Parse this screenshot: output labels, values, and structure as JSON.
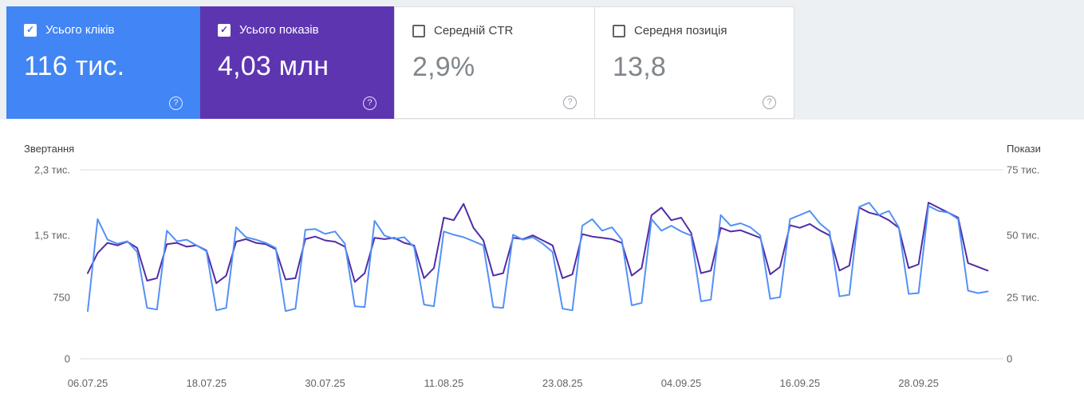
{
  "cards": {
    "clicks": {
      "title": "Усього кліків",
      "value": "116 тис.",
      "checked": true,
      "color": "#4285f4"
    },
    "impressions": {
      "title": "Усього показів",
      "value": "4,03 млн",
      "checked": true,
      "color": "#5e35b1"
    },
    "ctr": {
      "title": "Середній CTR",
      "value": "2,9%",
      "checked": false
    },
    "position": {
      "title": "Середня позиція",
      "value": "13,8",
      "checked": false
    }
  },
  "icons": {
    "check_glyph": "✓",
    "help_glyph": "?"
  },
  "chart": {
    "left_axis_title": "Звертання",
    "right_axis_title": "Покази",
    "left_labels": [
      "2,3 тис.",
      "1,5 тис.",
      "750",
      "0"
    ],
    "right_labels": [
      "75 тис.",
      "50 тис.",
      "25 тис.",
      "0"
    ]
  },
  "chart_data": {
    "type": "line",
    "title": "",
    "x_tick_labels": [
      "06.07.25",
      "18.07.25",
      "30.07.25",
      "11.08.25",
      "23.08.25",
      "04.09.25",
      "16.09.25",
      "28.09.25"
    ],
    "x_tick_days": [
      0,
      12,
      24,
      36,
      48,
      60,
      72,
      84
    ],
    "left_axis": {
      "label": "Звертання",
      "max": 2300,
      "gridline_values": [
        0,
        750,
        1500,
        2300
      ]
    },
    "right_axis": {
      "label": "Покази",
      "max": 75000,
      "gridline_values": [
        0,
        25000,
        50000,
        75000
      ]
    },
    "grid": "top-and-baseline-only",
    "legend_position": "none",
    "series": [
      {
        "name": "Звертання",
        "axis": "left",
        "color": "#5491f5",
        "values": [
          580,
          1700,
          1450,
          1400,
          1430,
          1300,
          620,
          600,
          1560,
          1430,
          1450,
          1380,
          1310,
          590,
          620,
          1600,
          1480,
          1450,
          1410,
          1350,
          580,
          610,
          1570,
          1580,
          1520,
          1550,
          1400,
          640,
          630,
          1680,
          1500,
          1460,
          1480,
          1360,
          660,
          640,
          1550,
          1510,
          1480,
          1430,
          1380,
          630,
          620,
          1510,
          1450,
          1480,
          1400,
          1300,
          610,
          590,
          1620,
          1700,
          1560,
          1600,
          1450,
          650,
          680,
          1700,
          1560,
          1620,
          1550,
          1500,
          700,
          720,
          1750,
          1620,
          1650,
          1600,
          1500,
          730,
          750,
          1700,
          1750,
          1800,
          1650,
          1550,
          760,
          780,
          1850,
          1900,
          1750,
          1800,
          1600,
          790,
          800,
          1860,
          1800,
          1780,
          1700,
          830,
          800,
          820
        ]
      },
      {
        "name": "Покази",
        "axis": "right",
        "color": "#512da8",
        "values": [
          34000,
          42000,
          46000,
          45000,
          46500,
          44000,
          31000,
          32000,
          45500,
          46000,
          44500,
          45000,
          43000,
          30000,
          33000,
          46500,
          47500,
          46000,
          45500,
          43500,
          31500,
          32000,
          47500,
          48500,
          47000,
          46500,
          44500,
          30500,
          34000,
          48000,
          47500,
          48000,
          46000,
          45000,
          32000,
          36000,
          56000,
          55000,
          61500,
          52000,
          47000,
          33000,
          34000,
          48000,
          47500,
          49000,
          47000,
          45000,
          32000,
          33500,
          49500,
          48500,
          48000,
          47500,
          46000,
          33000,
          36000,
          57000,
          60000,
          55000,
          56000,
          50000,
          34000,
          35000,
          52000,
          50500,
          51000,
          49500,
          48000,
          33500,
          36500,
          53000,
          52000,
          53500,
          51000,
          49000,
          35000,
          37000,
          60000,
          58000,
          57000,
          55000,
          52000,
          36000,
          37500,
          62000,
          60000,
          58000,
          56000,
          38000,
          36500,
          35000
        ]
      }
    ]
  }
}
